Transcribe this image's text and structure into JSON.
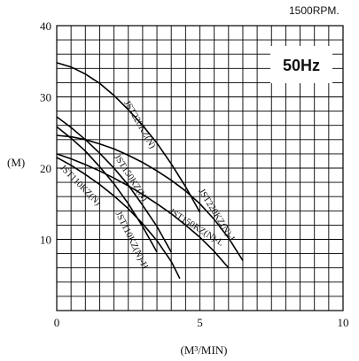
{
  "chart_data": {
    "type": "line",
    "title": "50Hz",
    "subtitle": "1500RPM.",
    "xlabel": "(M³/MIN)",
    "ylabel": "(M)",
    "xlim": [
      0,
      10
    ],
    "ylim": [
      0,
      40
    ],
    "x_ticks": [
      "0",
      "5",
      "10"
    ],
    "y_ticks": [
      "10",
      "20",
      "30",
      "40"
    ],
    "grid": true,
    "series": [
      {
        "name": "JST220KZ(N)",
        "x": [
          0,
          0.5,
          1.0,
          1.5,
          2.0,
          2.5,
          3.0,
          3.5,
          4.0,
          4.5,
          5.0
        ],
        "y": [
          34.8,
          34.2,
          33.2,
          31.9,
          30.2,
          28.2,
          26.0,
          23.5,
          20.6,
          17.4,
          13.8
        ]
      },
      {
        "name": "JST220KZ(N)-L",
        "x": [
          0,
          0.5,
          1.0,
          1.5,
          2.0,
          2.5,
          3.0,
          3.5,
          4.0,
          4.5,
          5.0,
          5.5,
          6.0,
          6.5
        ],
        "y": [
          24.6,
          24.4,
          24.0,
          23.4,
          22.7,
          21.8,
          20.8,
          19.6,
          18.3,
          16.8,
          15.0,
          12.8,
          10.2,
          7.0
        ]
      },
      {
        "name": "JST150KZ(N)",
        "x": [
          0,
          0.5,
          1.0,
          1.5,
          2.0,
          2.5,
          3.0,
          3.5,
          4.0
        ],
        "y": [
          27.2,
          25.7,
          24.0,
          22.1,
          20.0,
          17.6,
          14.8,
          11.8,
          8.2
        ]
      },
      {
        "name": "JST150KZ(N)-L",
        "x": [
          0,
          0.5,
          1.0,
          1.5,
          2.0,
          2.5,
          3.0,
          3.5,
          4.0,
          4.5,
          5.0,
          5.5,
          6.0
        ],
        "y": [
          22.0,
          21.3,
          20.5,
          19.6,
          18.6,
          17.5,
          16.3,
          15.0,
          13.6,
          12.0,
          10.3,
          8.3,
          6.0
        ]
      },
      {
        "name": "JST110KZ(N)",
        "x": [
          0,
          0.5,
          1.0,
          1.5,
          2.0,
          2.5,
          3.0,
          3.5
        ],
        "y": [
          25.8,
          24.2,
          22.4,
          20.2,
          17.8,
          15.0,
          11.8,
          8.2
        ]
      },
      {
        "name": "JST110KZ(N)-H",
        "x": [
          0,
          0.5,
          1.0,
          1.5,
          2.0,
          2.5,
          3.0,
          3.5,
          4.0,
          4.3
        ],
        "y": [
          21.5,
          20.4,
          19.1,
          17.7,
          16.1,
          14.3,
          12.2,
          9.8,
          6.9,
          4.5
        ]
      }
    ],
    "curve_labels": [
      {
        "text": "JST220KZ(N)"
      },
      {
        "text": "JST220KZ(N)-L"
      },
      {
        "text": "JST150KZ(N)"
      },
      {
        "text": "JST150KZ(N)-L"
      },
      {
        "text": "JST110KZ(N)"
      },
      {
        "text": "JST110KZ(N)-H"
      }
    ]
  }
}
